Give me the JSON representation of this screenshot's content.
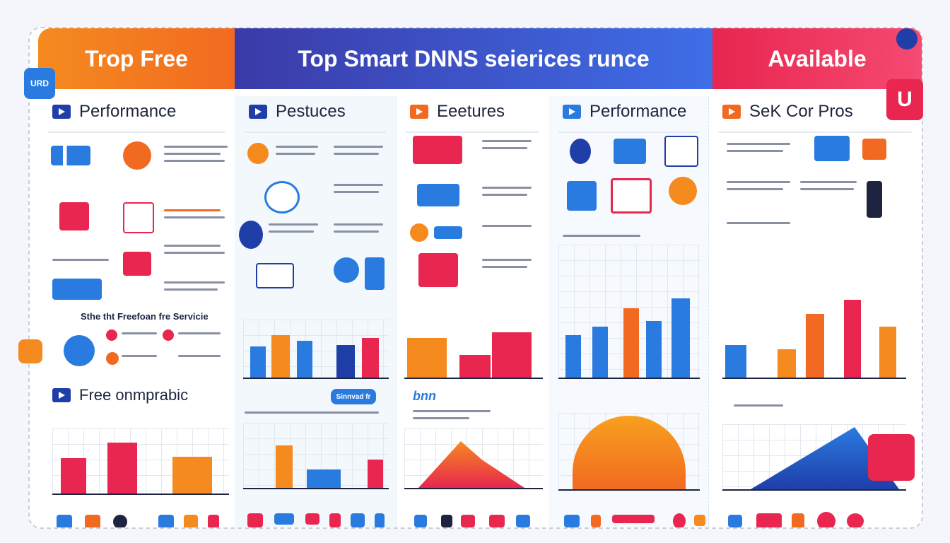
{
  "banners": {
    "left": "Trop Free",
    "center": "Top Smart DNNS seierices  runce",
    "right": "Available"
  },
  "corner_badges": {
    "urd": "URD",
    "u": "U"
  },
  "columns": [
    {
      "heading": "Performance",
      "subheading": "Sthe tht Freefoan fre Servicie",
      "icon": "play-icon"
    },
    {
      "heading": "Pestuces",
      "icon": "play-icon"
    },
    {
      "heading": "Eeetures",
      "icon": "feature-icon"
    },
    {
      "heading": "Performance",
      "icon": "play-icon"
    },
    {
      "heading": "SeK Cor Pros",
      "icon": "play-icon"
    }
  ],
  "lower": {
    "left_heading": "Free onmprabic",
    "tag": "Sinnvad fr",
    "logo_text": "bnn"
  },
  "colors": {
    "orange": "#f58a1f",
    "indigo": "#3b3aa8",
    "blue": "#3f6ee8",
    "red": "#e8264f"
  }
}
